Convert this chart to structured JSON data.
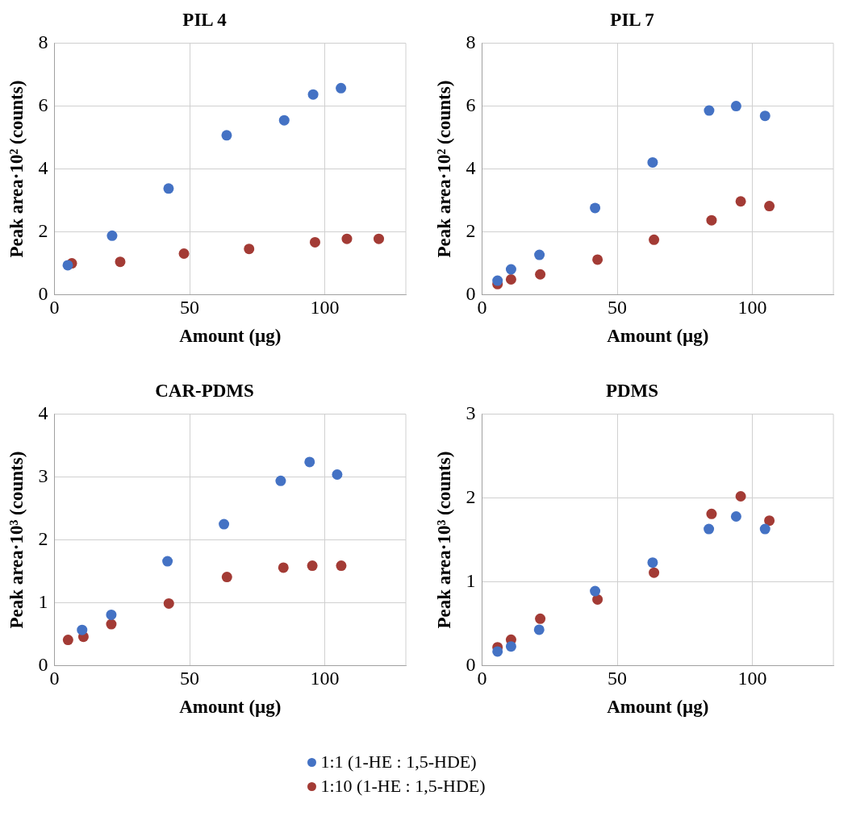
{
  "chart_data": [
    {
      "type": "scatter",
      "title": "PIL 4",
      "xlabel": "Amount (µg)",
      "ylabel": "Peak area·10² (counts)",
      "xlim": [
        0,
        130
      ],
      "xticks": [
        0,
        50,
        100
      ],
      "ylim": [
        0,
        8
      ],
      "yticks": [
        0,
        2,
        4,
        6,
        8
      ],
      "grid": true,
      "marker": "circle",
      "legend": "bottom",
      "series": [
        {
          "name": "1:1 (1-HE : 1,5-HDE)",
          "color": "#4472c4",
          "x": [
            4.9,
            21.3,
            42.2,
            63.7,
            85,
            95.7,
            106
          ],
          "values": [
            0.94,
            1.88,
            3.38,
            5.07,
            5.55,
            6.37,
            6.57
          ]
        },
        {
          "name": "1:10 (1-HE : 1,5-HDE)",
          "color": "#a33b35",
          "x": [
            6.4,
            24.3,
            47.9,
            72,
            96.4,
            108.2,
            120
          ],
          "values": [
            1.0,
            1.05,
            1.31,
            1.46,
            1.67,
            1.78,
            1.78
          ]
        }
      ]
    },
    {
      "type": "scatter",
      "title": "PIL 7",
      "xlabel": "Amount (µg)",
      "ylabel": "Peak area·10² (counts)",
      "xlim": [
        0,
        130
      ],
      "xticks": [
        0,
        50,
        100
      ],
      "ylim": [
        0,
        8
      ],
      "yticks": [
        0,
        2,
        4,
        6,
        8
      ],
      "grid": true,
      "marker": "circle",
      "series": [
        {
          "color": "#4472c4",
          "x": [
            5.7,
            10.7,
            21.2,
            41.8,
            63.1,
            84,
            94,
            104.7
          ],
          "values": [
            0.45,
            0.81,
            1.27,
            2.76,
            4.21,
            5.86,
            6.0,
            5.69
          ]
        },
        {
          "color": "#a33b35",
          "x": [
            5.7,
            10.7,
            21.5,
            42.7,
            63.6,
            84.9,
            95.7,
            106.3
          ],
          "values": [
            0.34,
            0.49,
            0.65,
            1.12,
            1.75,
            2.37,
            2.97,
            2.82
          ]
        }
      ]
    },
    {
      "type": "scatter",
      "title": "CAR-PDMS",
      "xlabel": "Amount (µg)",
      "ylabel": "Peak area·10³ (counts)",
      "xlim": [
        0,
        130
      ],
      "xticks": [
        0,
        50,
        100
      ],
      "ylim": [
        0,
        4
      ],
      "yticks": [
        0,
        1,
        2,
        3,
        4
      ],
      "grid": true,
      "marker": "circle",
      "series": [
        {
          "color": "#4472c4",
          "x": [
            10.2,
            21,
            41.8,
            62.7,
            83.7,
            94.4,
            104.6
          ],
          "values": [
            0.57,
            0.81,
            1.66,
            2.25,
            2.94,
            3.24,
            3.04
          ]
        },
        {
          "color": "#a33b35",
          "x": [
            5,
            10.7,
            21,
            42.3,
            63.8,
            84.7,
            95.4,
            106.1
          ],
          "values": [
            0.41,
            0.46,
            0.66,
            0.99,
            1.41,
            1.56,
            1.59,
            1.59
          ]
        }
      ]
    },
    {
      "type": "scatter",
      "title": "PDMS",
      "xlabel": "Amount (µg)",
      "ylabel": "Peak area·10³ (counts)",
      "xlim": [
        0,
        130
      ],
      "xticks": [
        0,
        50,
        100
      ],
      "ylim": [
        0,
        3
      ],
      "yticks": [
        0,
        1,
        2,
        3
      ],
      "grid": true,
      "marker": "circle",
      "series": [
        {
          "color": "#4472c4",
          "x": [
            5.7,
            10.7,
            21.1,
            41.8,
            63.1,
            83.9,
            94,
            104.7
          ],
          "values": [
            0.17,
            0.23,
            0.43,
            0.89,
            1.23,
            1.63,
            1.78,
            1.63
          ]
        },
        {
          "color": "#a33b35",
          "x": [
            5.7,
            10.7,
            21.5,
            42.7,
            63.6,
            84.9,
            95.7,
            106.3
          ],
          "values": [
            0.22,
            0.31,
            0.56,
            0.79,
            1.11,
            1.81,
            2.02,
            1.73
          ]
        }
      ]
    }
  ]
}
